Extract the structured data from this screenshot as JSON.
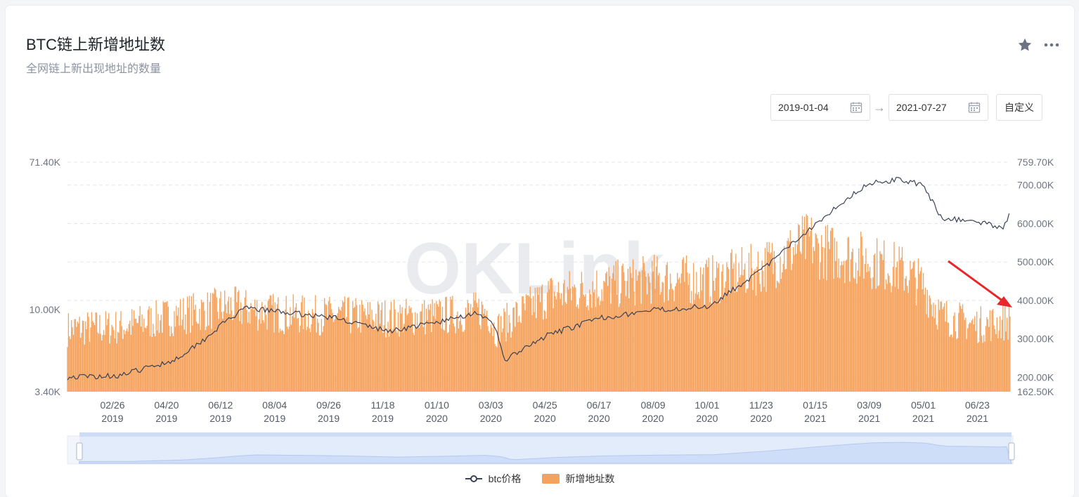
{
  "header": {
    "title": "BTC链上新增地址数",
    "subtitle": "全网链上新出现地址的数量"
  },
  "controls": {
    "start_date": "2019-01-04",
    "end_date": "2021-07-27",
    "custom_label": "自定义"
  },
  "icons": [
    "star-icon",
    "more-icon",
    "calendar-icon",
    "arrow-right-icon"
  ],
  "colors": {
    "bars": "#f5a25c",
    "price_line": "#3b4257",
    "arrow": "#e8262b",
    "slider": "#dce7fb"
  },
  "watermark": "OKLink",
  "legend": [
    {
      "label": "btc价格",
      "type": "line"
    },
    {
      "label": "新增地址数",
      "type": "bar"
    }
  ],
  "chart_data": {
    "type": "bar",
    "x_range": [
      "2019-01-04",
      "2021-07-27"
    ],
    "x_ticks": [
      {
        "md": "02/26",
        "year": "2019"
      },
      {
        "md": "04/20",
        "year": "2019"
      },
      {
        "md": "06/12",
        "year": "2019"
      },
      {
        "md": "08/04",
        "year": "2019"
      },
      {
        "md": "09/26",
        "year": "2019"
      },
      {
        "md": "11/18",
        "year": "2019"
      },
      {
        "md": "01/10",
        "year": "2020"
      },
      {
        "md": "03/03",
        "year": "2020"
      },
      {
        "md": "04/25",
        "year": "2020"
      },
      {
        "md": "06/17",
        "year": "2020"
      },
      {
        "md": "08/09",
        "year": "2020"
      },
      {
        "md": "10/01",
        "year": "2020"
      },
      {
        "md": "11/23",
        "year": "2020"
      },
      {
        "md": "01/15",
        "year": "2021"
      },
      {
        "md": "03/09",
        "year": "2021"
      },
      {
        "md": "05/01",
        "year": "2021"
      },
      {
        "md": "06/23",
        "year": "2021"
      }
    ],
    "y_left_ticks": [
      "71.40K",
      "10.00K",
      "3.40K"
    ],
    "y_right_ticks": [
      "759.70K",
      "700.00K",
      "600.00K",
      "500.00K",
      "400.00K",
      "300.00K",
      "200.00K",
      "162.50K"
    ],
    "y_right_range": [
      162.5,
      759.7
    ],
    "series": [
      {
        "name": "新增地址数",
        "type": "bar",
        "axis": "right",
        "unit": "K",
        "dates": [
          "2019-01-04",
          "2019-02-26",
          "2019-04-20",
          "2019-06-12",
          "2019-08-04",
          "2019-09-26",
          "2019-11-18",
          "2020-01-10",
          "2020-02-25",
          "2020-03-03",
          "2020-03-13",
          "2020-04-25",
          "2020-06-17",
          "2020-08-09",
          "2020-10-01",
          "2020-11-23",
          "2021-01-10",
          "2021-01-15",
          "2021-02-15",
          "2021-03-09",
          "2021-04-10",
          "2021-05-01",
          "2021-05-20",
          "2021-06-23",
          "2021-07-27"
        ],
        "values": [
          340,
          345,
          375,
          400,
          380,
          375,
          370,
          375,
          390,
          335,
          355,
          430,
          455,
          475,
          470,
          505,
          580,
          555,
          540,
          525,
          500,
          460,
          375,
          350,
          360
        ]
      },
      {
        "name": "btc价格",
        "type": "line",
        "axis": "right",
        "unit": "K",
        "dates": [
          "2019-01-04",
          "2019-02-26",
          "2019-04-20",
          "2019-05-20",
          "2019-06-12",
          "2019-07-01",
          "2019-08-04",
          "2019-09-26",
          "2019-11-18",
          "2020-01-10",
          "2020-02-15",
          "2020-03-03",
          "2020-03-13",
          "2020-04-25",
          "2020-06-17",
          "2020-08-09",
          "2020-10-01",
          "2020-11-23",
          "2021-01-15",
          "2021-02-15",
          "2021-03-09",
          "2021-04-10",
          "2021-05-01",
          "2021-05-20",
          "2021-06-23",
          "2021-07-20",
          "2021-07-27"
        ],
        "values": [
          200,
          205,
          245,
          300,
          350,
          380,
          370,
          355,
          320,
          345,
          370,
          330,
          245,
          310,
          355,
          375,
          385,
          480,
          600,
          665,
          705,
          715,
          700,
          615,
          605,
          590,
          630
        ]
      }
    ],
    "annotations": [
      {
        "type": "arrow",
        "target": "2021-07-27"
      }
    ],
    "grid": "horizontal-dashed",
    "legend_position": "bottom"
  }
}
